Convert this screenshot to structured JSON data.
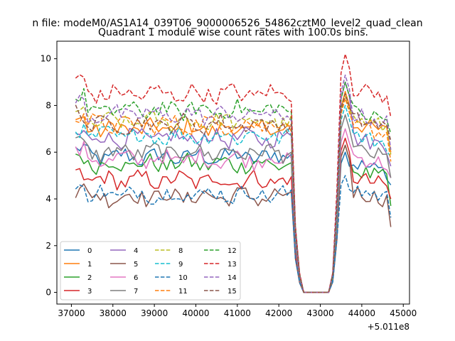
{
  "chart_data": {
    "type": "line",
    "suptitle": "n file: modeM0/AS1A14_039T06_9000006526_54862cztM0_level2_quad_clean",
    "title": "Quadrant 1 module wise count rates with 100.0s bins.",
    "xlabel": "",
    "ylabel": "",
    "x_offset_label": "+5.011e8",
    "xlim": [
      36650,
      45150
    ],
    "ylim": [
      -0.5,
      10.75
    ],
    "xticks": [
      37000,
      38000,
      39000,
      40000,
      41000,
      42000,
      43000,
      44000,
      45000
    ],
    "yticks": [
      0,
      2,
      4,
      6,
      8,
      10
    ],
    "legend_location": "lower-left",
    "legend_columns": 4,
    "x_start": 37100,
    "x_step": 100,
    "gap_profile": [
      1,
      1,
      0.35,
      0.1,
      0,
      0,
      0,
      0,
      0,
      0,
      0,
      0.1,
      0.5,
      0.9
    ],
    "gap_start_x": 42200,
    "series": [
      {
        "name": "0",
        "color": "#1f77b4",
        "style": "solid",
        "pre_mean": 5.8,
        "post_mean": 5.6,
        "peak": 6.0
      },
      {
        "name": "1",
        "color": "#ff7f0e",
        "style": "solid",
        "pre_mean": 7.0,
        "post_mean": 7.3,
        "peak": 8.6
      },
      {
        "name": "2",
        "color": "#2ca02c",
        "style": "solid",
        "pre_mean": 5.5,
        "post_mean": 5.3,
        "peak": 6.3
      },
      {
        "name": "3",
        "color": "#d62728",
        "style": "solid",
        "pre_mean": 4.8,
        "post_mean": 5.0,
        "peak": 6.6
      },
      {
        "name": "4",
        "color": "#9467bd",
        "style": "solid",
        "pre_mean": 6.6,
        "post_mean": 6.7,
        "peak": 9.0
      },
      {
        "name": "5",
        "color": "#8c564b",
        "style": "solid",
        "pre_mean": 4.1,
        "post_mean": 4.4,
        "peak": 6.3
      },
      {
        "name": "6",
        "color": "#e377c2",
        "style": "solid",
        "pre_mean": 5.7,
        "post_mean": 5.9,
        "peak": 7.0
      },
      {
        "name": "7",
        "color": "#7f7f7f",
        "style": "solid",
        "pre_mean": 6.0,
        "post_mean": 6.2,
        "peak": 7.6
      },
      {
        "name": "8",
        "color": "#bcbd22",
        "style": "dashed",
        "pre_mean": 7.3,
        "post_mean": 7.5,
        "peak": 8.4
      },
      {
        "name": "9",
        "color": "#17becf",
        "style": "dashed",
        "pre_mean": 6.7,
        "post_mean": 6.8,
        "peak": 8.0
      },
      {
        "name": "10",
        "color": "#1f77b4",
        "style": "dashed",
        "pre_mean": 4.2,
        "post_mean": 4.5,
        "peak": 5.0
      },
      {
        "name": "11",
        "color": "#ff7f0e",
        "style": "dashed",
        "pre_mean": 7.2,
        "post_mean": 7.2,
        "peak": 8.3
      },
      {
        "name": "12",
        "color": "#2ca02c",
        "style": "dashed",
        "pre_mean": 7.8,
        "post_mean": 7.8,
        "peak": 9.0
      },
      {
        "name": "13",
        "color": "#d62728",
        "style": "dashed",
        "pre_mean": 8.5,
        "post_mean": 8.8,
        "peak": 10.2
      },
      {
        "name": "14",
        "color": "#9467bd",
        "style": "dashed",
        "pre_mean": 7.6,
        "post_mean": 7.7,
        "peak": 9.3
      },
      {
        "name": "15",
        "color": "#8c564b",
        "style": "dashed",
        "pre_mean": 7.2,
        "post_mean": 7.5,
        "peak": 8.5
      }
    ],
    "x_end": 44700
  }
}
